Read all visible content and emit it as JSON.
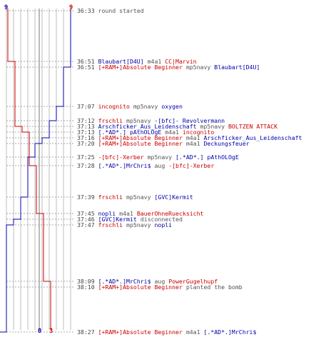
{
  "colors": {
    "blue_team": "#0000aa",
    "red_team": "#cc0000",
    "neutral": "#555555",
    "time": "#444444"
  },
  "scores": {
    "top_left": "9",
    "top_right": "9",
    "bottom_blue": "0",
    "bottom_red": "3"
  },
  "events": [
    {
      "time": "36:33",
      "parts": [
        {
          "t": "round started",
          "c": "grey"
        }
      ]
    },
    {
      "time": "36:51",
      "parts": [
        {
          "t": "Blaubart[D4U]",
          "c": "blue"
        },
        {
          "t": " m4a1 ",
          "c": "grey"
        },
        {
          "t": "CC|Marvin",
          "c": "red"
        }
      ]
    },
    {
      "time": "36:51",
      "parts": [
        {
          "t": "[+RAM+]Absolute Beginner",
          "c": "red"
        },
        {
          "t": " mp5navy ",
          "c": "grey"
        },
        {
          "t": "Blaubart[D4U]",
          "c": "blue"
        }
      ]
    },
    {
      "time": "37:07",
      "parts": [
        {
          "t": "incognito",
          "c": "red"
        },
        {
          "t": " mp5navy ",
          "c": "grey"
        },
        {
          "t": "oxygen",
          "c": "blue"
        }
      ]
    },
    {
      "time": "37:12",
      "parts": [
        {
          "t": "frschli",
          "c": "red"
        },
        {
          "t": " mp5navy ",
          "c": "grey"
        },
        {
          "t": "-[bfc]- Revolvermann",
          "c": "blue"
        }
      ]
    },
    {
      "time": "37:13",
      "parts": [
        {
          "t": "Arschficker_Aus_Leidenschaft",
          "c": "blue"
        },
        {
          "t": " mp5navy ",
          "c": "grey"
        },
        {
          "t": "BOLTZEN ATTACK",
          "c": "red"
        }
      ]
    },
    {
      "time": "37:13",
      "parts": [
        {
          "t": "[.*AD*.] pAthOLOgE",
          "c": "blue"
        },
        {
          "t": " m4a1 ",
          "c": "grey"
        },
        {
          "t": "incognito",
          "c": "red"
        }
      ]
    },
    {
      "time": "37:16",
      "parts": [
        {
          "t": "[+RAM+]Absolute Beginner",
          "c": "red"
        },
        {
          "t": " m4a1 ",
          "c": "grey"
        },
        {
          "t": "Arschficker_Aus_Leidenschaft",
          "c": "blue"
        }
      ]
    },
    {
      "time": "37:20",
      "parts": [
        {
          "t": "[+RAM+]Absolute Beginner",
          "c": "red"
        },
        {
          "t": " m4a1 ",
          "c": "grey"
        },
        {
          "t": "Deckungsfeuer",
          "c": "blue"
        }
      ]
    },
    {
      "time": "37:25",
      "parts": [
        {
          "t": "-[bfc]-Xerber",
          "c": "red"
        },
        {
          "t": " mp5navy ",
          "c": "grey"
        },
        {
          "t": "[.*AD*.] pAthOLOgE",
          "c": "blue"
        }
      ]
    },
    {
      "time": "37:28",
      "parts": [
        {
          "t": "[.*AD*.]MrChri$",
          "c": "blue"
        },
        {
          "t": " aug ",
          "c": "grey"
        },
        {
          "t": "-[bfc]-Xerber",
          "c": "red"
        }
      ]
    },
    {
      "time": "37:39",
      "parts": [
        {
          "t": "frschli",
          "c": "red"
        },
        {
          "t": " mp5navy ",
          "c": "grey"
        },
        {
          "t": "[GVC]Kermit",
          "c": "blue"
        }
      ]
    },
    {
      "time": "37:45",
      "parts": [
        {
          "t": "nopli",
          "c": "blue"
        },
        {
          "t": " m4a1 ",
          "c": "grey"
        },
        {
          "t": "BauerOhneRuecksicht",
          "c": "red"
        }
      ]
    },
    {
      "time": "37:46",
      "parts": [
        {
          "t": "[GVC]Kermit",
          "c": "blue"
        },
        {
          "t": " disconnected",
          "c": "grey"
        }
      ]
    },
    {
      "time": "37:47",
      "parts": [
        {
          "t": "frschli",
          "c": "red"
        },
        {
          "t": " mp5navy ",
          "c": "grey"
        },
        {
          "t": "nopli",
          "c": "blue"
        }
      ]
    },
    {
      "time": "38:09",
      "parts": [
        {
          "t": "[.*AD*.]MrChri$",
          "c": "blue"
        },
        {
          "t": " aug ",
          "c": "grey"
        },
        {
          "t": "PowerGugelhupf",
          "c": "red"
        }
      ]
    },
    {
      "time": "38:10",
      "parts": [
        {
          "t": "[+RAM+]Absolute Beginner",
          "c": "red"
        },
        {
          "t": " planted the bomb",
          "c": "grey"
        }
      ]
    },
    {
      "time": "38:27",
      "parts": [
        {
          "t": "[+RAM+]Absolute Beginner",
          "c": "red"
        },
        {
          "t": " m4a1 ",
          "c": "grey"
        },
        {
          "t": "[.*AD*.]MrChri$",
          "c": "blue"
        }
      ]
    }
  ]
}
